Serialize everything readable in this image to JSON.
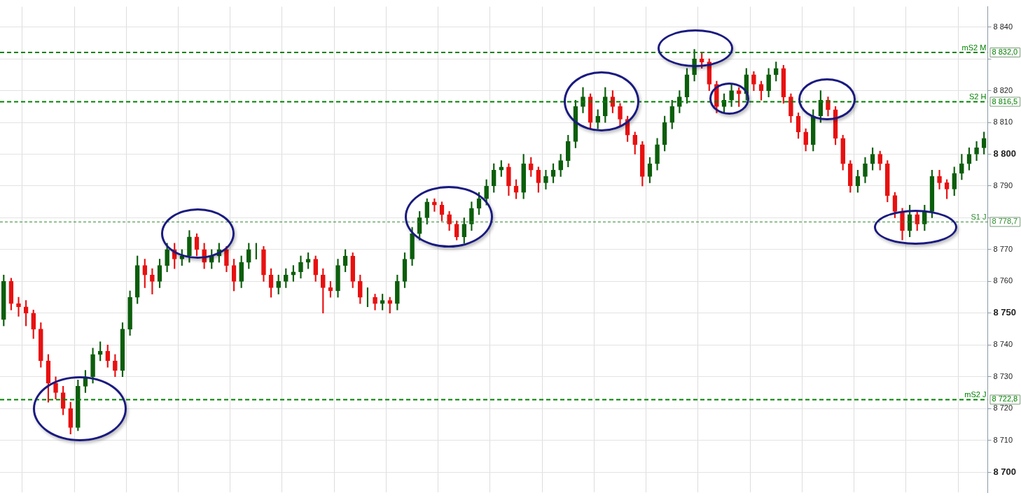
{
  "chart_data": {
    "type": "candlestick",
    "categories": [
      null,
      null,
      null,
      null,
      null,
      null,
      null,
      null,
      null,
      null,
      null,
      null,
      null,
      null,
      null,
      null,
      null,
      null,
      null,
      null,
      null,
      null,
      null,
      null,
      null,
      null,
      null,
      null,
      null,
      null,
      null,
      null,
      null,
      null,
      null,
      null,
      null,
      null,
      null,
      null,
      null,
      null,
      null,
      null,
      null,
      null,
      null,
      null,
      null,
      null,
      null,
      null,
      null,
      null,
      null,
      null,
      null,
      null,
      null,
      null,
      null,
      null,
      null,
      null,
      null,
      null,
      null,
      null,
      null,
      null,
      null,
      null,
      null,
      null,
      null,
      null,
      null,
      null,
      null,
      null,
      null,
      null,
      null,
      null,
      null,
      null,
      null,
      null,
      null,
      null,
      null,
      null,
      null,
      null,
      null,
      null,
      null,
      null,
      null,
      null,
      null,
      null,
      null,
      null,
      null,
      null,
      null,
      null,
      null,
      null,
      null,
      null,
      null,
      null,
      null,
      null,
      null,
      null,
      null,
      null,
      null,
      null,
      null,
      null,
      null,
      null,
      null,
      null,
      null,
      null,
      null,
      null,
      null
    ],
    "ohlc": [
      [
        8748,
        8762,
        8746,
        8760
      ],
      [
        8760,
        8761,
        8751,
        8753
      ],
      [
        8753,
        8755,
        8749,
        8752
      ],
      [
        8752,
        8754,
        8746,
        8750
      ],
      [
        8750,
        8751,
        8742,
        8745
      ],
      [
        8745,
        8747,
        8733,
        8735
      ],
      [
        8735,
        8737,
        8722,
        8728
      ],
      [
        8728,
        8730,
        8723,
        8725
      ],
      [
        8725,
        8727,
        8718,
        8720
      ],
      [
        8720,
        8722,
        8712,
        8714
      ],
      [
        8714,
        8729,
        8713,
        8727
      ],
      [
        8727,
        8732,
        8725,
        8730
      ],
      [
        8730,
        8739,
        8728,
        8737
      ],
      [
        8737,
        8741,
        8735,
        8738
      ],
      [
        8738,
        8740,
        8733,
        8735
      ],
      [
        8735,
        8737,
        8730,
        8732
      ],
      [
        8732,
        8747,
        8730,
        8745
      ],
      [
        8745,
        8757,
        8743,
        8755
      ],
      [
        8755,
        8768,
        8753,
        8765
      ],
      [
        8765,
        8767,
        8758,
        8762
      ],
      [
        8762,
        8764,
        8756,
        8760
      ],
      [
        8760,
        8767,
        8758,
        8765
      ],
      [
        8765,
        8772,
        8763,
        8770
      ],
      [
        8770,
        8772,
        8764,
        8767
      ],
      [
        8767,
        8770,
        8765,
        8768
      ],
      [
        8768,
        8776,
        8766,
        8774
      ],
      [
        8774,
        8775,
        8768,
        8770
      ],
      [
        8770,
        8772,
        8764,
        8766
      ],
      [
        8766,
        8770,
        8764,
        8768
      ],
      [
        8768,
        8772,
        8766,
        8770
      ],
      [
        8770,
        8771,
        8763,
        8765
      ],
      [
        8765,
        8767,
        8757,
        8760
      ],
      [
        8760,
        8768,
        8758,
        8766
      ],
      [
        8766,
        8772,
        8764,
        8770
      ],
      [
        8770,
        8772,
        8767,
        8770
      ],
      [
        8770,
        8771,
        8760,
        8762
      ],
      [
        8762,
        8764,
        8755,
        8758
      ],
      [
        8758,
        8762,
        8756,
        8760
      ],
      [
        8760,
        8764,
        8758,
        8762
      ],
      [
        8762,
        8765,
        8760,
        8763
      ],
      [
        8763,
        8768,
        8761,
        8766
      ],
      [
        8766,
        8769,
        8764,
        8767
      ],
      [
        8767,
        8768,
        8760,
        8762
      ],
      [
        8762,
        8764,
        8750,
        8758
      ],
      [
        8758,
        8760,
        8755,
        8757
      ],
      [
        8757,
        8767,
        8755,
        8765
      ],
      [
        8765,
        8770,
        8763,
        8768
      ],
      [
        8768,
        8769,
        8758,
        8760
      ],
      [
        8760,
        8762,
        8753,
        8755
      ],
      [
        8755,
        8758,
        8752,
        8755
      ],
      [
        8755,
        8756,
        8751,
        8753
      ],
      [
        8753,
        8756,
        8751,
        8754
      ],
      [
        8754,
        8755,
        8750,
        8753
      ],
      [
        8753,
        8762,
        8751,
        8760
      ],
      [
        8760,
        8769,
        8758,
        8767
      ],
      [
        8767,
        8777,
        8765,
        8775
      ],
      [
        8775,
        8782,
        8773,
        8780
      ],
      [
        8780,
        8786,
        8778,
        8785
      ],
      [
        8785,
        8786,
        8782,
        8784
      ],
      [
        8784,
        8785,
        8779,
        8781
      ],
      [
        8781,
        8782,
        8776,
        8778
      ],
      [
        8778,
        8779,
        8773,
        8774
      ],
      [
        8774,
        8780,
        8772,
        8778
      ],
      [
        8778,
        8785,
        8776,
        8783
      ],
      [
        8783,
        8788,
        8781,
        8786
      ],
      [
        8786,
        8792,
        8784,
        8790
      ],
      [
        8790,
        8797,
        8788,
        8795
      ],
      [
        8795,
        8798,
        8793,
        8796
      ],
      [
        8796,
        8797,
        8787,
        8790
      ],
      [
        8790,
        8792,
        8786,
        8788
      ],
      [
        8788,
        8800,
        8786,
        8797
      ],
      [
        8797,
        8799,
        8793,
        8795
      ],
      [
        8795,
        8796,
        8788,
        8791
      ],
      [
        8791,
        8795,
        8789,
        8793
      ],
      [
        8793,
        8797,
        8791,
        8795
      ],
      [
        8795,
        8800,
        8793,
        8798
      ],
      [
        8798,
        8806,
        8796,
        8804
      ],
      [
        8804,
        8817,
        8802,
        8815
      ],
      [
        8815,
        8821,
        8813,
        8818
      ],
      [
        8818,
        8819,
        8808,
        8810
      ],
      [
        8810,
        8814,
        8808,
        8812
      ],
      [
        8812,
        8821,
        8810,
        8818
      ],
      [
        8818,
        8820,
        8813,
        8815
      ],
      [
        8815,
        8816,
        8809,
        8811
      ],
      [
        8811,
        8812,
        8804,
        8806
      ],
      [
        8806,
        8807,
        8800,
        8803
      ],
      [
        8803,
        8804,
        8790,
        8793
      ],
      [
        8793,
        8799,
        8791,
        8797
      ],
      [
        8797,
        8805,
        8795,
        8803
      ],
      [
        8803,
        8812,
        8801,
        8810
      ],
      [
        8810,
        8817,
        8808,
        8815
      ],
      [
        8815,
        8820,
        8813,
        8818
      ],
      [
        8818,
        8827,
        8816,
        8825
      ],
      [
        8825,
        8833,
        8823,
        8830
      ],
      [
        8830,
        8832,
        8827,
        8829
      ],
      [
        8829,
        8830,
        8820,
        8822
      ],
      [
        8822,
        8823,
        8813,
        8815
      ],
      [
        8815,
        8819,
        8813,
        8817
      ],
      [
        8817,
        8822,
        8815,
        8820
      ],
      [
        8820,
        8821,
        8815,
        8819
      ],
      [
        8819,
        8827,
        8817,
        8825
      ],
      [
        8825,
        8826,
        8820,
        8822
      ],
      [
        8822,
        8823,
        8817,
        8820
      ],
      [
        8820,
        8827,
        8818,
        8825
      ],
      [
        8825,
        8829,
        8823,
        8827
      ],
      [
        8827,
        8828,
        8816,
        8818
      ],
      [
        8818,
        8819,
        8810,
        8812
      ],
      [
        8812,
        8813,
        8805,
        8807
      ],
      [
        8807,
        8808,
        8801,
        8803
      ],
      [
        8803,
        8814,
        8801,
        8812
      ],
      [
        8812,
        8820,
        8810,
        8817
      ],
      [
        8817,
        8818,
        8812,
        8814
      ],
      [
        8814,
        8815,
        8803,
        8805
      ],
      [
        8805,
        8806,
        8795,
        8797
      ],
      [
        8797,
        8798,
        8788,
        8790
      ],
      [
        8790,
        8795,
        8788,
        8793
      ],
      [
        8793,
        8799,
        8791,
        8797
      ],
      [
        8797,
        8802,
        8795,
        8800
      ],
      [
        8800,
        8801,
        8795,
        8797
      ],
      [
        8797,
        8798,
        8785,
        8787
      ],
      [
        8787,
        8788,
        8780,
        8782
      ],
      [
        8782,
        8783,
        8773,
        8776
      ],
      [
        8776,
        8784,
        8774,
        8781
      ],
      [
        8781,
        8782,
        8776,
        8778
      ],
      [
        8778,
        8784,
        8776,
        8782
      ],
      [
        8782,
        8795,
        8780,
        8793
      ],
      [
        8793,
        8795,
        8789,
        8791
      ],
      [
        8791,
        8792,
        8786,
        8789
      ],
      [
        8789,
        8796,
        8787,
        8794
      ],
      [
        8794,
        8800,
        8792,
        8797
      ],
      [
        8797,
        8802,
        8795,
        8800
      ],
      [
        8800,
        8804,
        8798,
        8802
      ],
      [
        8802,
        8807,
        8800,
        8805
      ]
    ],
    "colors": [
      "#0b5e0b",
      "#e81010",
      "#e81010",
      "#e81010",
      "#e81010",
      "#e81010",
      "#e81010",
      "#e81010",
      "#e81010",
      "#e81010",
      "#0b5e0b",
      "#0b5e0b",
      "#0b5e0b",
      "#0b5e0b",
      "#e81010",
      "#e81010",
      "#0b5e0b",
      "#0b5e0b",
      "#0b5e0b",
      "#e81010",
      "#e81010",
      "#0b5e0b",
      "#0b5e0b",
      "#e81010",
      "#0b5e0b",
      "#0b5e0b",
      "#e81010",
      "#e81010",
      "#0b5e0b",
      "#0b5e0b",
      "#e81010",
      "#e81010",
      "#0b5e0b",
      "#0b5e0b",
      "#0b5e0b",
      "#e81010",
      "#e81010",
      "#0b5e0b",
      "#0b5e0b",
      "#0b5e0b",
      "#0b5e0b",
      "#0b5e0b",
      "#e81010",
      "#e81010",
      "#e81010",
      "#0b5e0b",
      "#0b5e0b",
      "#e81010",
      "#e81010",
      "#0b5e0b",
      "#e81010",
      "#0b5e0b",
      "#e81010",
      "#0b5e0b",
      "#0b5e0b",
      "#0b5e0b",
      "#0b5e0b",
      "#0b5e0b",
      "#e81010",
      "#e81010",
      "#e81010",
      "#e81010",
      "#0b5e0b",
      "#0b5e0b",
      "#0b5e0b",
      "#0b5e0b",
      "#0b5e0b",
      "#0b5e0b",
      "#e81010",
      "#e81010",
      "#0b5e0b",
      "#e81010",
      "#e81010",
      "#0b5e0b",
      "#0b5e0b",
      "#0b5e0b",
      "#0b5e0b",
      "#0b5e0b",
      "#0b5e0b",
      "#e81010",
      "#0b5e0b",
      "#0b5e0b",
      "#e81010",
      "#e81010",
      "#e81010",
      "#e81010",
      "#e81010",
      "#0b5e0b",
      "#0b5e0b",
      "#0b5e0b",
      "#0b5e0b",
      "#0b5e0b",
      "#0b5e0b",
      "#0b5e0b",
      "#e81010",
      "#e81010",
      "#e81010",
      "#0b5e0b",
      "#0b5e0b",
      "#e81010",
      "#0b5e0b",
      "#e81010",
      "#e81010",
      "#0b5e0b",
      "#0b5e0b",
      "#e81010",
      "#e81010",
      "#e81010",
      "#e81010",
      "#0b5e0b",
      "#0b5e0b",
      "#e81010",
      "#e81010",
      "#e81010",
      "#e81010",
      "#0b5e0b",
      "#0b5e0b",
      "#0b5e0b",
      "#e81010",
      "#e81010",
      "#e81010",
      "#e81010",
      "#0b5e0b",
      "#e81010",
      "#0b5e0b",
      "#0b5e0b",
      "#e81010",
      "#e81010",
      "#0b5e0b",
      "#0b5e0b",
      "#0b5e0b",
      "#0b5e0b",
      "#0b5e0b"
    ],
    "ylim": [
      8693.6,
      8846.4
    ],
    "annotations": [
      "8 832,0",
      "8 816,5",
      "8 778,7",
      "8 722,8"
    ],
    "yticks": [
      {
        "value": 8700,
        "label": "8 700"
      },
      {
        "value": 8710,
        "label": "8 710"
      },
      {
        "value": 8720,
        "label": "8 720"
      },
      {
        "value": 8730,
        "label": "8 730"
      },
      {
        "value": 8740,
        "label": "8 740"
      },
      {
        "value": 8750,
        "label": "8 750"
      },
      {
        "value": 8760,
        "label": "8 760"
      },
      {
        "value": 8770,
        "label": "8 770"
      },
      {
        "value": 8780,
        "label": null
      },
      {
        "value": 8790,
        "label": "8 790"
      },
      {
        "value": 8800,
        "label": "8 800"
      },
      {
        "value": 8810,
        "label": "8 810"
      },
      {
        "value": 8820,
        "label": "8 820"
      },
      {
        "value": 8830,
        "label": null
      },
      {
        "value": 8840,
        "label": "8 840"
      }
    ],
    "tick_labels": "y",
    "grid": true,
    "legend": false,
    "ref_lines": [
      {
        "axis": "y",
        "value": 8832.0,
        "label": "mS2 M",
        "color": "#008000",
        "line_style": "dashed"
      },
      {
        "axis": "y",
        "value": 8816.5,
        "label": "S2 H",
        "color": "#008000",
        "line_style": "dashed"
      },
      {
        "axis": "y",
        "value": 8778.7,
        "label": "S1 J",
        "color": "#2e8b2e",
        "line_style": "dotted"
      },
      {
        "axis": "y",
        "value": 8722.8,
        "label": "mS2 J",
        "color": "#008000",
        "line_style": "dashed"
      }
    ]
  }
}
